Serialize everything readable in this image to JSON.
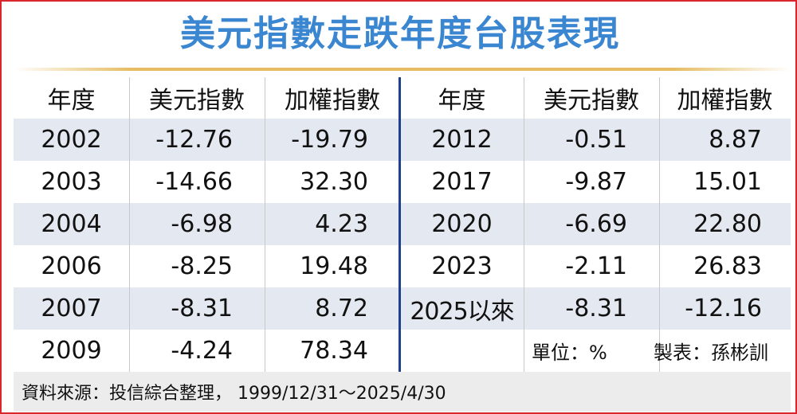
{
  "title": "美元指數走跌年度台股表現",
  "table": {
    "header": [
      "年度",
      "美元指數",
      "加權指數"
    ],
    "left_rows": [
      [
        "2002",
        "-12.76",
        "-19.79"
      ],
      [
        "2003",
        "-14.66",
        "32.30"
      ],
      [
        "2004",
        "-6.98",
        "4.23"
      ],
      [
        "2006",
        "-8.25",
        "19.48"
      ],
      [
        "2007",
        "-8.31",
        "8.72"
      ],
      [
        "2009",
        "-4.24",
        "78.34"
      ]
    ],
    "right_rows": [
      [
        "2012",
        "-0.51",
        "8.87"
      ],
      [
        "2017",
        "-9.87",
        "15.01"
      ],
      [
        "2020",
        "-6.69",
        "22.80"
      ],
      [
        "2023",
        "-2.11",
        "26.83"
      ],
      [
        "2025以來",
        "-8.31",
        "-12.16"
      ]
    ]
  },
  "notes": {
    "unit": "單位：%",
    "author": "製表：孫彬訓"
  },
  "source": "資料來源：投信綜合整理， 1999/12/31～2025/4/30"
}
